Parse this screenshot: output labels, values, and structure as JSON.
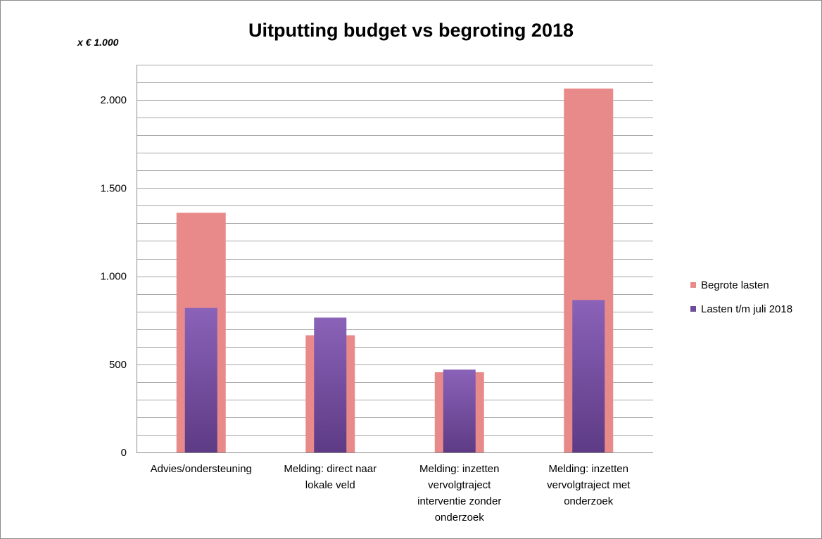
{
  "chart_data": {
    "type": "bar",
    "title": "Uitputting budget vs begroting 2018",
    "unit_label": "x € 1.000",
    "categories": [
      "Advies/ondersteuning",
      "Melding: direct naar lokale veld",
      "Melding: inzetten vervolgtraject interventie zonder onderzoek",
      "Melding: inzetten vervolgtraject met onderzoek"
    ],
    "category_lines": [
      [
        "Advies/ondersteuning"
      ],
      [
        "Melding: direct naar",
        "lokale veld"
      ],
      [
        "Melding: inzetten",
        "vervolgtraject",
        "interventie zonder",
        "onderzoek"
      ],
      [
        "Melding: inzetten",
        "vervolgtraject met",
        "onderzoek"
      ]
    ],
    "series": [
      {
        "name": "Begrote lasten",
        "values": [
          1360,
          665,
          455,
          2065
        ],
        "color": "#e98a8a"
      },
      {
        "name": "Lasten t/m juli 2018",
        "values": [
          820,
          765,
          470,
          865
        ],
        "color": "#7a55a8"
      }
    ],
    "ylim": [
      0,
      2200
    ],
    "yticks": [
      0,
      500,
      1000,
      1500,
      2000
    ],
    "ytick_labels": [
      "0",
      "500",
      "1.000",
      "1.500",
      "2.000"
    ],
    "minor_grid_step": 100,
    "grid": true,
    "legend_position": "right"
  }
}
